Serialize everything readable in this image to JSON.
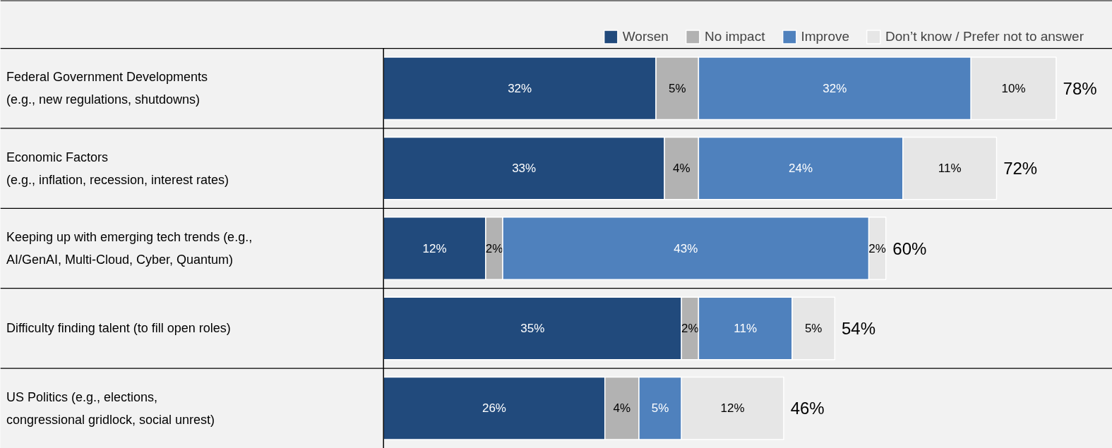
{
  "chart_data": {
    "type": "bar",
    "orientation": "horizontal",
    "stacked": true,
    "legend": "top right",
    "categories": [
      "Federal Government Developments\n(e.g., new regulations, shutdowns)",
      "Economic Factors\n(e.g., inflation, recession, interest rates)",
      "Keeping up with emerging tech trends (e.g.,\n AI/GenAI, Multi-Cloud, Cyber, Quantum)",
      "Difficulty finding talent (to fill open roles)",
      "US Politics (e.g., elections,\n congressional gridlock, social unrest)"
    ],
    "series": [
      {
        "name": "Worsen",
        "color": "#214a7c",
        "values": [
          32,
          33,
          12,
          35,
          26
        ],
        "value_labels": [
          "32%",
          "33%",
          "12%",
          "35%",
          "26%"
        ]
      },
      {
        "name": "No impact",
        "color": "#b2b2b2",
        "values": [
          5,
          4,
          2,
          2,
          4
        ],
        "value_labels": [
          "5%",
          "4%",
          "2%",
          "2%",
          "4%"
        ]
      },
      {
        "name": "Improve",
        "color": "#4f81bd",
        "values": [
          32,
          24,
          43,
          11,
          5
        ],
        "value_labels": [
          "32%",
          "24%",
          "43%",
          "11%",
          "5%"
        ]
      },
      {
        "name": "Don’t know / Prefer not to answer",
        "color": "#e6e6e6",
        "values": [
          10,
          11,
          2,
          5,
          12
        ],
        "value_labels": [
          "10%",
          "11%",
          "2%",
          "5%",
          "12%"
        ]
      }
    ],
    "totals": [
      "78%",
      "72%",
      "60%",
      "54%",
      "46%"
    ]
  }
}
